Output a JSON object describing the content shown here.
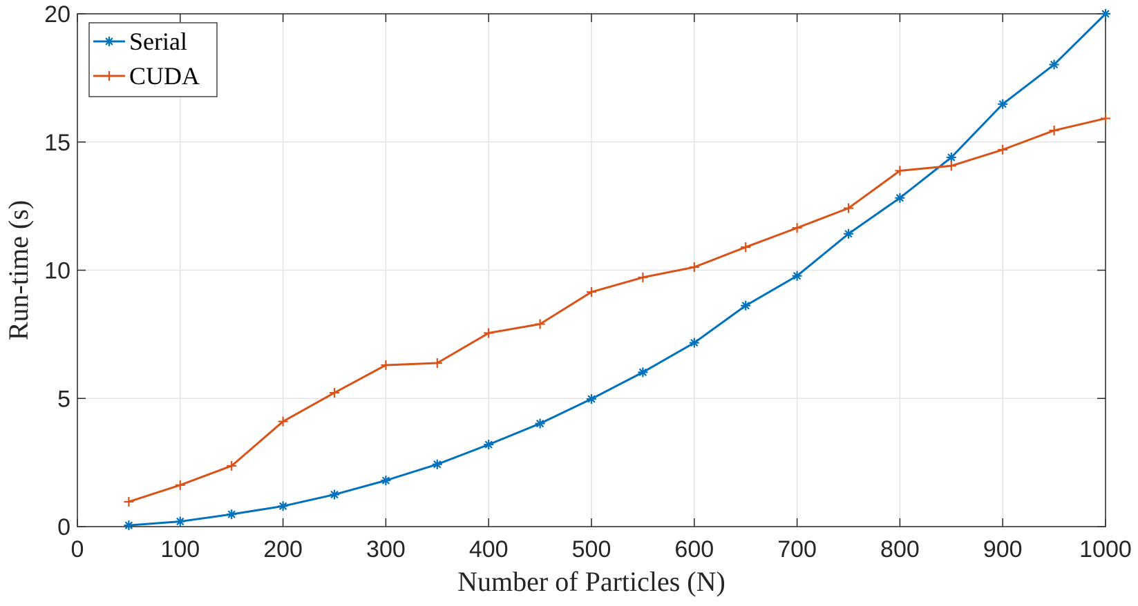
{
  "chart_data": {
    "type": "line",
    "xlabel": "Number of Particles (N)",
    "ylabel": "Run-time (s)",
    "xlim": [
      0,
      1000
    ],
    "ylim": [
      0,
      20
    ],
    "xticks": [
      0,
      100,
      200,
      300,
      400,
      500,
      600,
      700,
      800,
      900,
      1000
    ],
    "yticks": [
      0,
      5,
      10,
      15,
      20
    ],
    "grid": true,
    "legend_position": "top-left",
    "x": [
      50,
      100,
      150,
      200,
      250,
      300,
      350,
      400,
      450,
      500,
      550,
      600,
      650,
      700,
      750,
      800,
      850,
      900,
      950,
      1000
    ],
    "series": [
      {
        "name": "Serial",
        "color": "#0072BD",
        "marker": "asterisk",
        "values": [
          0.05,
          0.2,
          0.48,
          0.8,
          1.25,
          1.8,
          2.43,
          3.2,
          4.02,
          4.98,
          6.02,
          7.17,
          8.62,
          9.78,
          11.42,
          12.82,
          14.4,
          16.48,
          18.02,
          20.0
        ]
      },
      {
        "name": "CUDA",
        "color": "#D95319",
        "marker": "plus",
        "values": [
          0.97,
          1.62,
          2.37,
          4.1,
          5.22,
          6.3,
          6.38,
          7.55,
          7.9,
          9.15,
          9.72,
          10.12,
          10.9,
          11.65,
          12.42,
          13.88,
          14.07,
          14.7,
          15.45,
          15.92
        ]
      }
    ]
  }
}
